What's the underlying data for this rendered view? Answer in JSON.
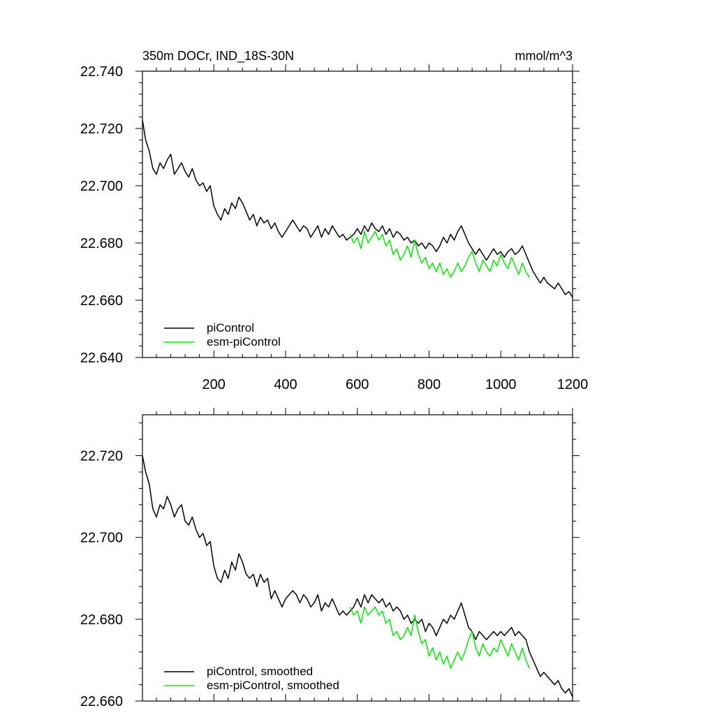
{
  "chart_data": [
    {
      "type": "line",
      "title": "350m DOCr, IND_18S-30N",
      "units": "mmol/m^3",
      "xlim": [
        1,
        1200
      ],
      "ylim": [
        22.64,
        22.74
      ],
      "x_ticks": [
        200,
        400,
        600,
        800,
        1000,
        1200
      ],
      "x_tick_labels": [
        "200",
        "400",
        "600",
        "800",
        "1000",
        "1200"
      ],
      "y_ticks": [
        22.64,
        22.66,
        22.68,
        22.7,
        22.72,
        22.74
      ],
      "y_tick_labels": [
        "22.640",
        "22.660",
        "22.680",
        "22.700",
        "22.720",
        "22.740"
      ],
      "legend": "bottom-left",
      "grid": false,
      "series": [
        {
          "name": "piControl",
          "color": "#000000",
          "x": [
            1,
            10,
            20,
            30,
            40,
            50,
            60,
            70,
            80,
            90,
            100,
            110,
            120,
            130,
            140,
            150,
            160,
            170,
            180,
            190,
            200,
            210,
            220,
            230,
            240,
            250,
            260,
            270,
            280,
            290,
            300,
            310,
            320,
            330,
            340,
            350,
            360,
            370,
            380,
            390,
            400,
            410,
            420,
            430,
            440,
            450,
            460,
            470,
            480,
            490,
            500,
            510,
            520,
            530,
            540,
            550,
            560,
            570,
            580,
            590,
            600,
            610,
            620,
            630,
            640,
            650,
            660,
            670,
            680,
            690,
            700,
            710,
            720,
            730,
            740,
            750,
            760,
            770,
            780,
            790,
            800,
            810,
            820,
            830,
            840,
            850,
            860,
            870,
            880,
            890,
            900,
            910,
            920,
            930,
            940,
            950,
            960,
            970,
            980,
            990,
            1000,
            1010,
            1020,
            1030,
            1040,
            1050,
            1060,
            1070,
            1080,
            1090,
            1100,
            1110,
            1120,
            1130,
            1140,
            1150,
            1160,
            1170,
            1180,
            1190,
            1200
          ],
          "values": [
            22.723,
            22.716,
            22.712,
            22.706,
            22.704,
            22.708,
            22.706,
            22.709,
            22.711,
            22.704,
            22.706,
            22.708,
            22.705,
            22.703,
            22.706,
            22.702,
            22.7,
            22.701,
            22.698,
            22.7,
            22.693,
            22.69,
            22.688,
            22.692,
            22.69,
            22.694,
            22.692,
            22.696,
            22.694,
            22.691,
            22.688,
            22.69,
            22.686,
            22.689,
            22.687,
            22.688,
            22.685,
            22.687,
            22.684,
            22.682,
            22.684,
            22.686,
            22.688,
            22.686,
            22.684,
            22.686,
            22.685,
            22.682,
            22.684,
            22.686,
            22.682,
            22.685,
            22.683,
            22.686,
            22.684,
            22.682,
            22.683,
            22.681,
            22.682,
            22.683,
            22.685,
            22.683,
            22.686,
            22.684,
            22.687,
            22.685,
            22.684,
            22.686,
            22.683,
            22.685,
            22.682,
            22.684,
            22.683,
            22.681,
            22.682,
            22.68,
            22.681,
            22.679,
            22.68,
            22.678,
            22.68,
            22.679,
            22.677,
            22.679,
            22.682,
            22.68,
            22.683,
            22.681,
            22.684,
            22.686,
            22.683,
            22.68,
            22.678,
            22.676,
            22.678,
            22.676,
            22.674,
            22.676,
            22.678,
            22.676,
            22.677,
            22.675,
            22.677,
            22.678,
            22.676,
            22.677,
            22.679,
            22.676,
            22.673,
            22.67,
            22.668,
            22.666,
            22.668,
            22.666,
            22.665,
            22.664,
            22.666,
            22.664,
            22.662,
            22.663,
            22.661
          ]
        },
        {
          "name": "esm-piControl",
          "color": "#00ee00",
          "x": [
            580,
            590,
            600,
            610,
            620,
            630,
            640,
            650,
            660,
            670,
            680,
            690,
            700,
            710,
            720,
            730,
            740,
            750,
            760,
            770,
            780,
            790,
            800,
            810,
            820,
            830,
            840,
            850,
            860,
            870,
            880,
            890,
            900,
            910,
            920,
            930,
            940,
            950,
            960,
            970,
            980,
            990,
            1000,
            1010,
            1020,
            1030,
            1040,
            1050,
            1060,
            1070,
            1080
          ],
          "values": [
            22.683,
            22.68,
            22.682,
            22.678,
            22.684,
            22.68,
            22.682,
            22.684,
            22.681,
            22.683,
            22.679,
            22.681,
            22.676,
            22.678,
            22.674,
            22.676,
            22.679,
            22.675,
            22.681,
            22.676,
            22.673,
            22.675,
            22.671,
            22.673,
            22.67,
            22.673,
            22.669,
            22.671,
            22.668,
            22.67,
            22.673,
            22.67,
            22.672,
            22.675,
            22.677,
            22.673,
            22.67,
            22.674,
            22.672,
            22.67,
            22.674,
            22.672,
            22.676,
            22.673,
            22.671,
            22.675,
            22.672,
            22.669,
            22.673,
            22.67,
            22.668
          ]
        }
      ]
    },
    {
      "type": "line",
      "xlim": [
        1,
        1200
      ],
      "ylim": [
        22.66,
        22.73
      ],
      "y_ticks": [
        22.66,
        22.68,
        22.7,
        22.72
      ],
      "y_tick_labels": [
        "22.660",
        "22.680",
        "22.700",
        "22.720"
      ],
      "legend": "bottom-left",
      "grid": false,
      "series": [
        {
          "name": "piControl, smoothed",
          "color": "#000000",
          "x": [
            1,
            10,
            20,
            30,
            40,
            50,
            60,
            70,
            80,
            90,
            100,
            110,
            120,
            130,
            140,
            150,
            160,
            170,
            180,
            190,
            200,
            210,
            220,
            230,
            240,
            250,
            260,
            270,
            280,
            290,
            300,
            310,
            320,
            330,
            340,
            350,
            360,
            370,
            380,
            390,
            400,
            410,
            420,
            430,
            440,
            450,
            460,
            470,
            480,
            490,
            500,
            510,
            520,
            530,
            540,
            550,
            560,
            570,
            580,
            590,
            600,
            610,
            620,
            630,
            640,
            650,
            660,
            670,
            680,
            690,
            700,
            710,
            720,
            730,
            740,
            750,
            760,
            770,
            780,
            790,
            800,
            810,
            820,
            830,
            840,
            850,
            860,
            870,
            880,
            890,
            900,
            910,
            920,
            930,
            940,
            950,
            960,
            970,
            980,
            990,
            1000,
            1010,
            1020,
            1030,
            1040,
            1050,
            1060,
            1070,
            1080,
            1090,
            1100,
            1110,
            1120,
            1130,
            1140,
            1150,
            1160,
            1170,
            1180,
            1190,
            1200
          ],
          "values": [
            22.72,
            22.716,
            22.713,
            22.707,
            22.705,
            22.708,
            22.707,
            22.71,
            22.708,
            22.705,
            22.707,
            22.708,
            22.704,
            22.703,
            22.705,
            22.702,
            22.7,
            22.701,
            22.698,
            22.699,
            22.693,
            22.69,
            22.689,
            22.692,
            22.69,
            22.694,
            22.692,
            22.696,
            22.694,
            22.691,
            22.69,
            22.691,
            22.688,
            22.691,
            22.689,
            22.69,
            22.685,
            22.687,
            22.685,
            22.683,
            22.685,
            22.686,
            22.687,
            22.686,
            22.684,
            22.686,
            22.685,
            22.683,
            22.684,
            22.686,
            22.682,
            22.684,
            22.683,
            22.685,
            22.683,
            22.681,
            22.682,
            22.681,
            22.682,
            22.683,
            22.685,
            22.683,
            22.686,
            22.684,
            22.686,
            22.685,
            22.684,
            22.685,
            22.683,
            22.684,
            22.682,
            22.683,
            22.682,
            22.68,
            22.681,
            22.679,
            22.68,
            22.679,
            22.68,
            22.677,
            22.679,
            22.678,
            22.676,
            22.678,
            22.68,
            22.679,
            22.681,
            22.68,
            22.682,
            22.684,
            22.681,
            22.678,
            22.677,
            22.675,
            22.677,
            22.676,
            22.675,
            22.676,
            22.677,
            22.676,
            22.677,
            22.676,
            22.677,
            22.678,
            22.676,
            22.677,
            22.676,
            22.675,
            22.672,
            22.67,
            22.668,
            22.666,
            22.667,
            22.666,
            22.665,
            22.664,
            22.665,
            22.663,
            22.662,
            22.663,
            22.661
          ]
        },
        {
          "name": "esm-piControl, smoothed",
          "color": "#00ee00",
          "x": [
            580,
            590,
            600,
            610,
            620,
            630,
            640,
            650,
            660,
            670,
            680,
            690,
            700,
            710,
            720,
            730,
            740,
            750,
            760,
            770,
            780,
            790,
            800,
            810,
            820,
            830,
            840,
            850,
            860,
            870,
            880,
            890,
            900,
            910,
            920,
            930,
            940,
            950,
            960,
            970,
            980,
            990,
            1000,
            1010,
            1020,
            1030,
            1040,
            1050,
            1060,
            1070,
            1080
          ],
          "values": [
            22.683,
            22.681,
            22.682,
            22.679,
            22.683,
            22.681,
            22.682,
            22.683,
            22.681,
            22.682,
            22.679,
            22.68,
            22.676,
            22.677,
            22.675,
            22.676,
            22.678,
            22.676,
            22.681,
            22.677,
            22.674,
            22.675,
            22.671,
            22.673,
            22.67,
            22.672,
            22.669,
            22.671,
            22.668,
            22.67,
            22.672,
            22.67,
            22.672,
            22.675,
            22.677,
            22.673,
            22.671,
            22.674,
            22.672,
            22.671,
            22.673,
            22.672,
            22.675,
            22.673,
            22.671,
            22.674,
            22.672,
            22.67,
            22.673,
            22.67,
            22.668
          ]
        }
      ]
    }
  ]
}
